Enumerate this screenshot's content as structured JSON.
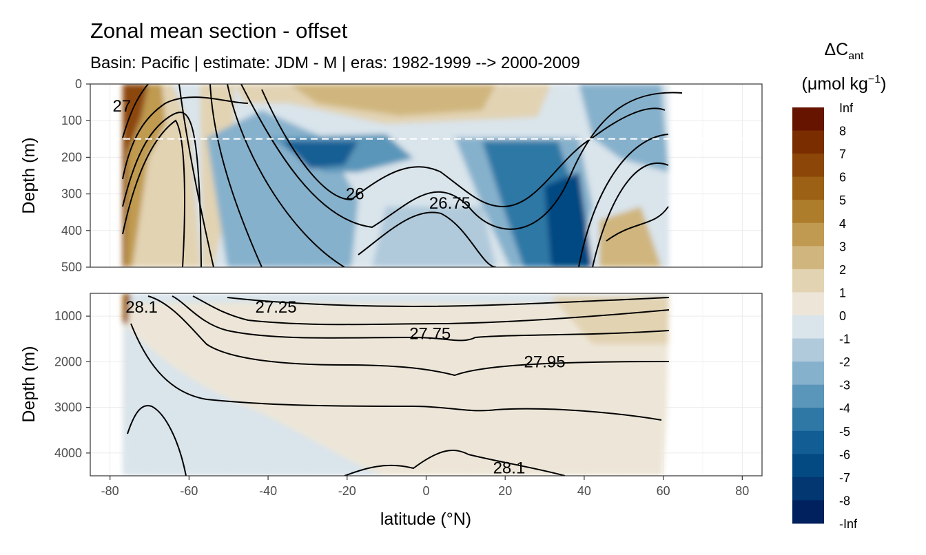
{
  "chart_data": {
    "type": "heatmap",
    "title": "Zonal mean section - offset",
    "subtitle": "Basin: Pacific | estimate: JDM - M | eras: 1982-1999 --> 2000-2009",
    "xlabel": "latitude (°N)",
    "ylabel": "Depth (m)",
    "x_ticks": [
      "-80",
      "-60",
      "-40",
      "-20",
      "0",
      "20",
      "40",
      "60",
      "80"
    ],
    "xlim": [
      -85,
      85
    ],
    "panels": [
      {
        "name": "upper",
        "ylim": [
          0,
          500
        ],
        "y_ticks": [
          "0",
          "100",
          "200",
          "300",
          "400",
          "500"
        ],
        "reference_depth": 150
      },
      {
        "name": "lower",
        "ylim": [
          500,
          4500
        ],
        "y_ticks": [
          "1000",
          "2000",
          "3000",
          "4000"
        ]
      }
    ],
    "data_extent": {
      "lat_min": -77,
      "lat_max": 62
    },
    "legend": {
      "title_main": "ΔC",
      "title_sub": "ant",
      "unit": "(μmol kg",
      "unit_sup": "−1",
      "unit_end": ")",
      "position": "right",
      "labels": [
        "Inf",
        "8",
        "7",
        "6",
        "5",
        "4",
        "3",
        "2",
        "1",
        "0",
        "-1",
        "-2",
        "-3",
        "-4",
        "-5",
        "-6",
        "-7",
        "-8",
        "-Inf"
      ],
      "colors": [
        "#661400",
        "#7a2e00",
        "#8c4708",
        "#9c6115",
        "#ad7d2c",
        "#bf9a50",
        "#d0b67e",
        "#e2d3b3",
        "#ede6d8",
        "#d9e4eb",
        "#b1cadb",
        "#86b1cc",
        "#5a96ba",
        "#2f78a6",
        "#125e94",
        "#044a82",
        "#023772",
        "#01205e"
      ]
    },
    "contour_labels": [
      {
        "text": "26",
        "lat": -18,
        "depth": 300
      },
      {
        "text": "26.75",
        "lat": 6,
        "depth": 325
      },
      {
        "text": "27.25",
        "lat": -38,
        "depth": 800
      },
      {
        "text": "27.75",
        "lat": 1,
        "depth": 1380
      },
      {
        "text": "27.95",
        "lat": 30,
        "depth": 2000
      },
      {
        "text": "28.1",
        "lat": 21,
        "depth": 4330
      },
      {
        "text": "28.1",
        "lat": -72,
        "depth": 800
      },
      {
        "text": "27",
        "lat": -77,
        "depth": 60
      }
    ]
  }
}
